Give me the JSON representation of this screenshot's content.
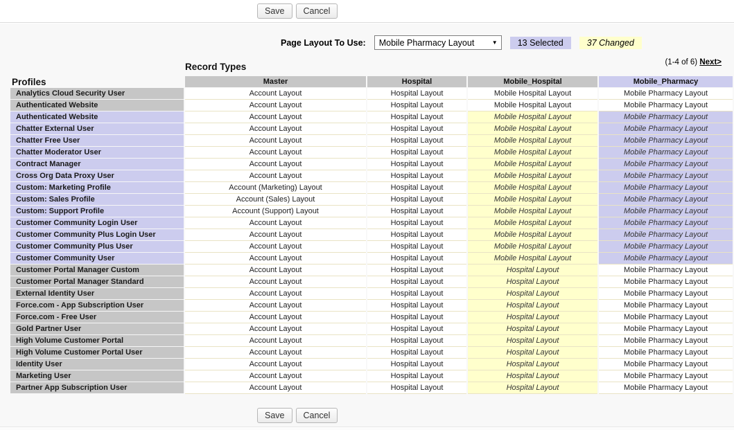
{
  "toolbar": {
    "save_label": "Save",
    "cancel_label": "Cancel"
  },
  "controls": {
    "page_layout_label": "Page Layout To Use:",
    "page_layout_value": "Mobile Pharmacy Layout",
    "dropdown_arrow": "▼",
    "selected_badge": "13 Selected",
    "changed_badge": "37 Changed"
  },
  "pagination": {
    "range": "(1-4 of 6)",
    "next": "Next>"
  },
  "colors": {
    "selected_lavender": "#ccccee",
    "changed_yellow": "#ffffcc",
    "row_gray": "#c6c6c6",
    "row_border_tan": "#e9e3c4",
    "content_bg": "#f8f8f8"
  },
  "table": {
    "record_types_title": "Record Types",
    "profiles_title": "Profiles",
    "columns": [
      {
        "label": "Master",
        "selected": false
      },
      {
        "label": "Hospital",
        "selected": false
      },
      {
        "label": "Mobile_Hospital",
        "selected": false
      },
      {
        "label": "Mobile_Pharmacy",
        "selected": true
      }
    ],
    "rows": [
      {
        "profile": "Analytics Cloud Security User",
        "selected": false,
        "cells": [
          [
            "Account Layout",
            "p"
          ],
          [
            "Hospital Layout",
            "p"
          ],
          [
            "Mobile Hospital Layout",
            "p"
          ],
          [
            "Mobile Pharmacy Layout",
            "p"
          ]
        ]
      },
      {
        "profile": "Authenticated Website",
        "selected": false,
        "cells": [
          [
            "Account Layout",
            "p"
          ],
          [
            "Hospital Layout",
            "p"
          ],
          [
            "Mobile Hospital Layout",
            "p"
          ],
          [
            "Mobile Pharmacy Layout",
            "p"
          ]
        ]
      },
      {
        "profile": "Authenticated Website",
        "selected": true,
        "cells": [
          [
            "Account Layout",
            "p"
          ],
          [
            "Hospital Layout",
            "p"
          ],
          [
            "Mobile Hospital Layout",
            "y"
          ],
          [
            "Mobile Pharmacy Layout",
            "l"
          ]
        ]
      },
      {
        "profile": "Chatter External User",
        "selected": true,
        "cells": [
          [
            "Account Layout",
            "p"
          ],
          [
            "Hospital Layout",
            "p"
          ],
          [
            "Mobile Hospital Layout",
            "y"
          ],
          [
            "Mobile Pharmacy Layout",
            "l"
          ]
        ]
      },
      {
        "profile": "Chatter Free User",
        "selected": true,
        "cells": [
          [
            "Account Layout",
            "p"
          ],
          [
            "Hospital Layout",
            "p"
          ],
          [
            "Mobile Hospital Layout",
            "y"
          ],
          [
            "Mobile Pharmacy Layout",
            "l"
          ]
        ]
      },
      {
        "profile": "Chatter Moderator User",
        "selected": true,
        "cells": [
          [
            "Account Layout",
            "p"
          ],
          [
            "Hospital Layout",
            "p"
          ],
          [
            "Mobile Hospital Layout",
            "y"
          ],
          [
            "Mobile Pharmacy Layout",
            "l"
          ]
        ]
      },
      {
        "profile": "Contract Manager",
        "selected": true,
        "cells": [
          [
            "Account Layout",
            "p"
          ],
          [
            "Hospital Layout",
            "p"
          ],
          [
            "Mobile Hospital Layout",
            "y"
          ],
          [
            "Mobile Pharmacy Layout",
            "l"
          ]
        ]
      },
      {
        "profile": "Cross Org Data Proxy User",
        "selected": true,
        "cells": [
          [
            "Account Layout",
            "p"
          ],
          [
            "Hospital Layout",
            "p"
          ],
          [
            "Mobile Hospital Layout",
            "y"
          ],
          [
            "Mobile Pharmacy Layout",
            "l"
          ]
        ]
      },
      {
        "profile": "Custom: Marketing Profile",
        "selected": true,
        "cells": [
          [
            "Account (Marketing) Layout",
            "p"
          ],
          [
            "Hospital Layout",
            "p"
          ],
          [
            "Mobile Hospital Layout",
            "y"
          ],
          [
            "Mobile Pharmacy Layout",
            "l"
          ]
        ]
      },
      {
        "profile": "Custom: Sales Profile",
        "selected": true,
        "cells": [
          [
            "Account (Sales) Layout",
            "p"
          ],
          [
            "Hospital Layout",
            "p"
          ],
          [
            "Mobile Hospital Layout",
            "y"
          ],
          [
            "Mobile Pharmacy Layout",
            "l"
          ]
        ]
      },
      {
        "profile": "Custom: Support Profile",
        "selected": true,
        "cells": [
          [
            "Account (Support) Layout",
            "p"
          ],
          [
            "Hospital Layout",
            "p"
          ],
          [
            "Mobile Hospital Layout",
            "y"
          ],
          [
            "Mobile Pharmacy Layout",
            "l"
          ]
        ]
      },
      {
        "profile": "Customer Community Login User",
        "selected": true,
        "cells": [
          [
            "Account Layout",
            "p"
          ],
          [
            "Hospital Layout",
            "p"
          ],
          [
            "Mobile Hospital Layout",
            "y"
          ],
          [
            "Mobile Pharmacy Layout",
            "l"
          ]
        ]
      },
      {
        "profile": "Customer Community Plus Login User",
        "selected": true,
        "cells": [
          [
            "Account Layout",
            "p"
          ],
          [
            "Hospital Layout",
            "p"
          ],
          [
            "Mobile Hospital Layout",
            "y"
          ],
          [
            "Mobile Pharmacy Layout",
            "l"
          ]
        ]
      },
      {
        "profile": "Customer Community Plus User",
        "selected": true,
        "cells": [
          [
            "Account Layout",
            "p"
          ],
          [
            "Hospital Layout",
            "p"
          ],
          [
            "Mobile Hospital Layout",
            "y"
          ],
          [
            "Mobile Pharmacy Layout",
            "l"
          ]
        ]
      },
      {
        "profile": "Customer Community User",
        "selected": true,
        "cells": [
          [
            "Account Layout",
            "p"
          ],
          [
            "Hospital Layout",
            "p"
          ],
          [
            "Mobile Hospital Layout",
            "y"
          ],
          [
            "Mobile Pharmacy Layout",
            "l"
          ]
        ]
      },
      {
        "profile": "Customer Portal Manager Custom",
        "selected": false,
        "cells": [
          [
            "Account Layout",
            "p"
          ],
          [
            "Hospital Layout",
            "p"
          ],
          [
            "Hospital Layout",
            "y"
          ],
          [
            "Mobile Pharmacy Layout",
            "p"
          ]
        ]
      },
      {
        "profile": "Customer Portal Manager Standard",
        "selected": false,
        "cells": [
          [
            "Account Layout",
            "p"
          ],
          [
            "Hospital Layout",
            "p"
          ],
          [
            "Hospital Layout",
            "y"
          ],
          [
            "Mobile Pharmacy Layout",
            "p"
          ]
        ]
      },
      {
        "profile": "External Identity User",
        "selected": false,
        "cells": [
          [
            "Account Layout",
            "p"
          ],
          [
            "Hospital Layout",
            "p"
          ],
          [
            "Hospital Layout",
            "y"
          ],
          [
            "Mobile Pharmacy Layout",
            "p"
          ]
        ]
      },
      {
        "profile": "Force.com - App Subscription User",
        "selected": false,
        "cells": [
          [
            "Account Layout",
            "p"
          ],
          [
            "Hospital Layout",
            "p"
          ],
          [
            "Hospital Layout",
            "y"
          ],
          [
            "Mobile Pharmacy Layout",
            "p"
          ]
        ]
      },
      {
        "profile": "Force.com - Free User",
        "selected": false,
        "cells": [
          [
            "Account Layout",
            "p"
          ],
          [
            "Hospital Layout",
            "p"
          ],
          [
            "Hospital Layout",
            "y"
          ],
          [
            "Mobile Pharmacy Layout",
            "p"
          ]
        ]
      },
      {
        "profile": "Gold Partner User",
        "selected": false,
        "cells": [
          [
            "Account Layout",
            "p"
          ],
          [
            "Hospital Layout",
            "p"
          ],
          [
            "Hospital Layout",
            "y"
          ],
          [
            "Mobile Pharmacy Layout",
            "p"
          ]
        ]
      },
      {
        "profile": "High Volume Customer Portal",
        "selected": false,
        "cells": [
          [
            "Account Layout",
            "p"
          ],
          [
            "Hospital Layout",
            "p"
          ],
          [
            "Hospital Layout",
            "y"
          ],
          [
            "Mobile Pharmacy Layout",
            "p"
          ]
        ]
      },
      {
        "profile": "High Volume Customer Portal User",
        "selected": false,
        "cells": [
          [
            "Account Layout",
            "p"
          ],
          [
            "Hospital Layout",
            "p"
          ],
          [
            "Hospital Layout",
            "y"
          ],
          [
            "Mobile Pharmacy Layout",
            "p"
          ]
        ]
      },
      {
        "profile": "Identity User",
        "selected": false,
        "cells": [
          [
            "Account Layout",
            "p"
          ],
          [
            "Hospital Layout",
            "p"
          ],
          [
            "Hospital Layout",
            "y"
          ],
          [
            "Mobile Pharmacy Layout",
            "p"
          ]
        ]
      },
      {
        "profile": "Marketing User",
        "selected": false,
        "cells": [
          [
            "Account Layout",
            "p"
          ],
          [
            "Hospital Layout",
            "p"
          ],
          [
            "Hospital Layout",
            "y"
          ],
          [
            "Mobile Pharmacy Layout",
            "p"
          ]
        ]
      },
      {
        "profile": "Partner App Subscription User",
        "selected": false,
        "cells": [
          [
            "Account Layout",
            "p"
          ],
          [
            "Hospital Layout",
            "p"
          ],
          [
            "Hospital Layout",
            "y"
          ],
          [
            "Mobile Pharmacy Layout",
            "p"
          ]
        ]
      }
    ]
  }
}
